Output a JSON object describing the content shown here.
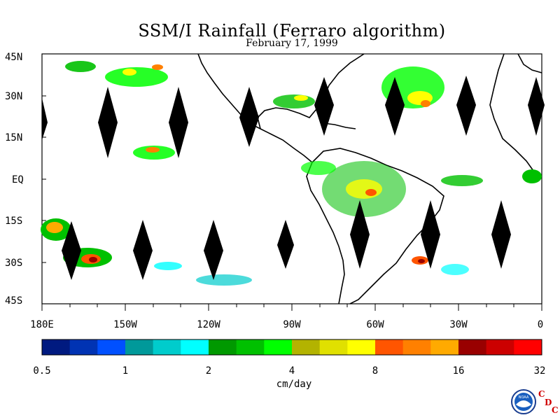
{
  "title": "SSM/I Rainfall (Ferraro algorithm)",
  "subtitle": "February 17, 1999",
  "lat_labels": [
    "45N",
    "30N",
    "15N",
    "EQ",
    "15S",
    "30S",
    "45S"
  ],
  "lon_labels": [
    "180E",
    "150W",
    "120W",
    "90W",
    "60W",
    "30W",
    "0"
  ],
  "colorbar": {
    "colors": [
      "#001a80",
      "#0033b3",
      "#0050ff",
      "#00999a",
      "#00cccc",
      "#00ffff",
      "#009900",
      "#00c000",
      "#00ff00",
      "#b3b300",
      "#e0e000",
      "#ffff00",
      "#ff5500",
      "#ff8000",
      "#ffaa00",
      "#990000",
      "#cc0000",
      "#ff0000"
    ],
    "tick_labels": [
      "0.5",
      "1",
      "2",
      "4",
      "8",
      "16",
      "32"
    ],
    "unit": "cm/day"
  },
  "logo": {
    "org": "NOAA",
    "lab_letters": [
      "C",
      "D",
      "C"
    ],
    "icon": "noaa-logo-icon"
  }
}
